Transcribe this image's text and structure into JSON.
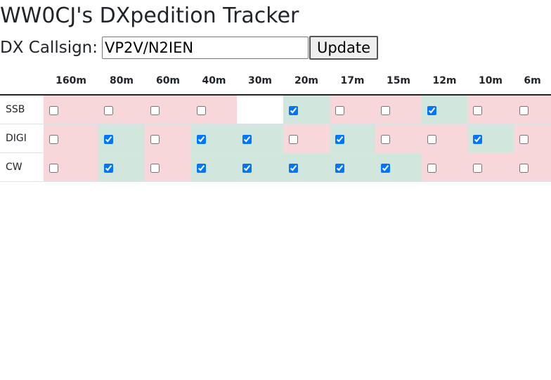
{
  "page": {
    "title": "WW0CJ's DXpedition Tracker"
  },
  "form": {
    "label": "DX Callsign:",
    "callsign_value": "VP2V/N2IEN",
    "update_label": "Update"
  },
  "colors": {
    "worked": "#d1e7dd",
    "needed": "#f8d7da"
  },
  "table": {
    "corner": "",
    "bands": [
      "160m",
      "80m",
      "60m",
      "40m",
      "30m",
      "20m",
      "17m",
      "15m",
      "12m",
      "10m",
      "6m"
    ],
    "rows": [
      {
        "mode": "SSB",
        "cells": [
          {
            "status": "needed",
            "checked": false
          },
          {
            "status": "needed",
            "checked": false
          },
          {
            "status": "needed",
            "checked": false
          },
          {
            "status": "needed",
            "checked": false
          },
          {
            "status": "empty",
            "checked": null
          },
          {
            "status": "worked",
            "checked": true
          },
          {
            "status": "needed",
            "checked": false
          },
          {
            "status": "needed",
            "checked": false
          },
          {
            "status": "worked",
            "checked": true
          },
          {
            "status": "needed",
            "checked": false
          },
          {
            "status": "needed",
            "checked": false
          }
        ]
      },
      {
        "mode": "DIGI",
        "cells": [
          {
            "status": "needed",
            "checked": false
          },
          {
            "status": "worked",
            "checked": true
          },
          {
            "status": "needed",
            "checked": false
          },
          {
            "status": "worked",
            "checked": true
          },
          {
            "status": "worked",
            "checked": true
          },
          {
            "status": "needed",
            "checked": false
          },
          {
            "status": "worked",
            "checked": true
          },
          {
            "status": "needed",
            "checked": false
          },
          {
            "status": "needed",
            "checked": false
          },
          {
            "status": "worked",
            "checked": true
          },
          {
            "status": "needed",
            "checked": false
          }
        ]
      },
      {
        "mode": "CW",
        "cells": [
          {
            "status": "needed",
            "checked": false
          },
          {
            "status": "worked",
            "checked": true
          },
          {
            "status": "needed",
            "checked": false
          },
          {
            "status": "worked",
            "checked": true
          },
          {
            "status": "worked",
            "checked": true
          },
          {
            "status": "worked",
            "checked": true
          },
          {
            "status": "worked",
            "checked": true
          },
          {
            "status": "worked",
            "checked": true
          },
          {
            "status": "needed",
            "checked": false
          },
          {
            "status": "needed",
            "checked": false
          },
          {
            "status": "needed",
            "checked": false
          }
        ]
      }
    ]
  }
}
